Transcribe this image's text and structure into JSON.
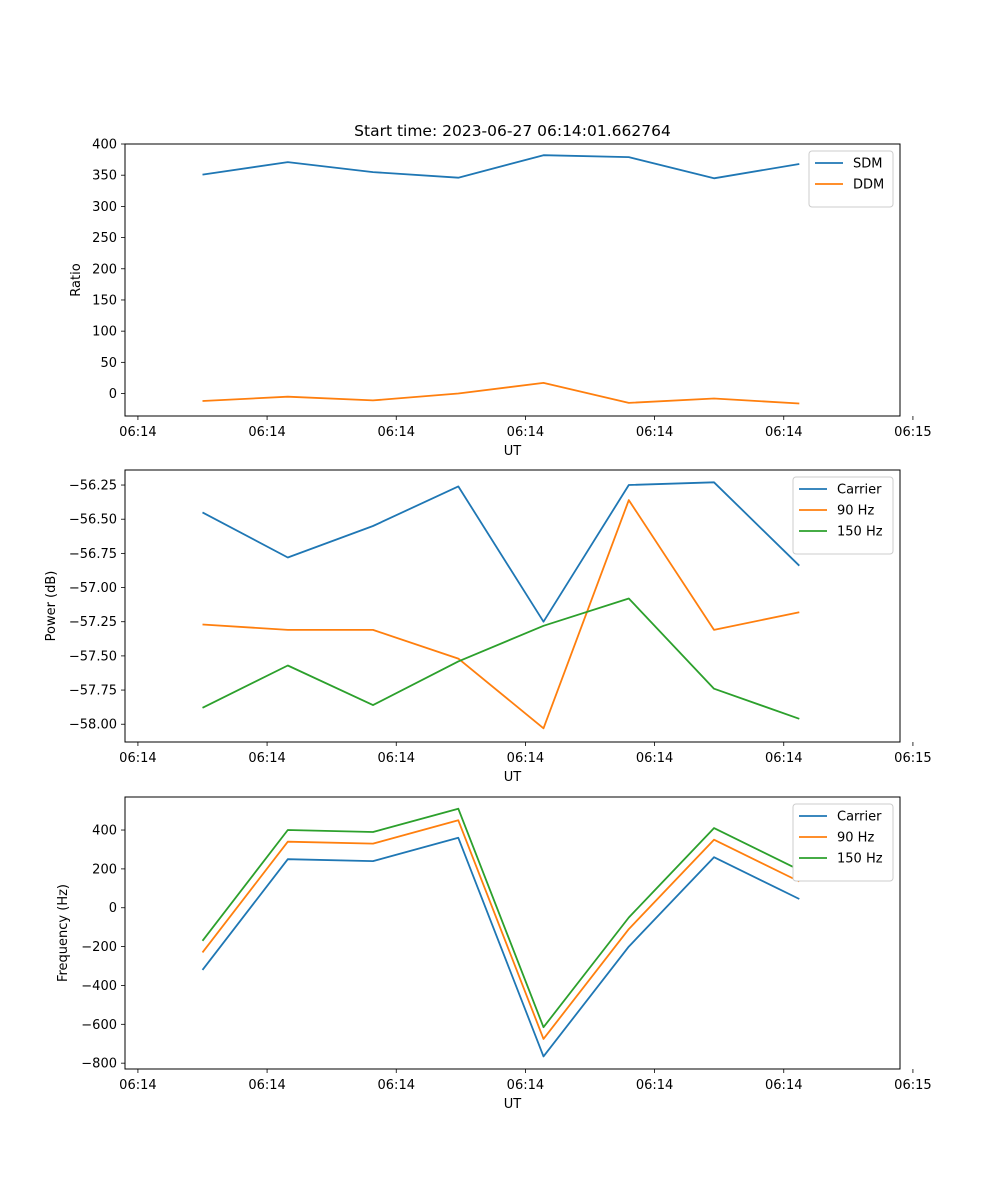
{
  "chart_data": [
    {
      "type": "line",
      "title": "Start time: 2023-06-27 06:14:01.662764",
      "xlabel": "UT",
      "ylabel": "Ratio",
      "x": [
        0.5,
        1.16,
        1.82,
        2.48,
        3.14,
        3.8,
        4.46,
        5.12
      ],
      "xlim": [
        -0.1,
        5.9
      ],
      "x_tick_labels": [
        "06:14",
        "06:14",
        "06:14",
        "06:14",
        "06:14",
        "06:14",
        "06:15"
      ],
      "ylim": [
        -36,
        400
      ],
      "y_ticks": [
        0,
        50,
        100,
        150,
        200,
        250,
        300,
        350,
        400
      ],
      "legend_position": "top-right",
      "series": [
        {
          "name": "SDM",
          "color": "#1f77b4",
          "values": [
            351,
            371,
            355,
            346,
            382,
            379,
            345,
            368
          ]
        },
        {
          "name": "DDM",
          "color": "#ff7f0e",
          "values": [
            -12,
            -5,
            -11,
            0,
            17,
            -15,
            -8,
            -16
          ]
        }
      ]
    },
    {
      "type": "line",
      "xlabel": "UT",
      "ylabel": "Power (dB)",
      "x": [
        0.5,
        1.16,
        1.82,
        2.48,
        3.14,
        3.8,
        4.46,
        5.12
      ],
      "xlim": [
        -0.1,
        5.9
      ],
      "x_tick_labels": [
        "06:14",
        "06:14",
        "06:14",
        "06:14",
        "06:14",
        "06:14",
        "06:15"
      ],
      "ylim": [
        -58.13,
        -56.14
      ],
      "y_ticks": [
        -58.0,
        -57.75,
        -57.5,
        -57.25,
        -57.0,
        -56.75,
        -56.5,
        -56.25
      ],
      "y_tick_labels": [
        "−58.00",
        "−57.75",
        "−57.50",
        "−57.25",
        "−57.00",
        "−56.75",
        "−56.50",
        "−56.25"
      ],
      "legend_position": "top-right",
      "series": [
        {
          "name": "Carrier",
          "color": "#1f77b4",
          "values": [
            -56.45,
            -56.78,
            -56.55,
            -56.26,
            -57.25,
            -56.25,
            -56.23,
            -56.84
          ]
        },
        {
          "name": "90 Hz",
          "color": "#ff7f0e",
          "values": [
            -57.27,
            -57.31,
            -57.31,
            -57.52,
            -58.03,
            -56.36,
            -57.31,
            -57.18
          ]
        },
        {
          "name": "150 Hz",
          "color": "#2ca02c",
          "values": [
            -57.88,
            -57.57,
            -57.86,
            -57.54,
            -57.28,
            -57.08,
            -57.74,
            -57.96
          ]
        }
      ]
    },
    {
      "type": "line",
      "xlabel": "UT",
      "ylabel": "Frequency (Hz)",
      "x": [
        0.5,
        1.16,
        1.82,
        2.48,
        3.14,
        3.8,
        4.46,
        5.12
      ],
      "xlim": [
        -0.1,
        5.9
      ],
      "x_tick_labels": [
        "06:14",
        "06:14",
        "06:14",
        "06:14",
        "06:14",
        "06:14",
        "06:15"
      ],
      "ylim": [
        -830,
        570
      ],
      "y_ticks": [
        -800,
        -600,
        -400,
        -200,
        0,
        200,
        400
      ],
      "y_tick_labels": [
        "−800",
        "−600",
        "−400",
        "−200",
        "0",
        "200",
        "400"
      ],
      "legend_position": "top-right",
      "series": [
        {
          "name": "Carrier",
          "color": "#1f77b4",
          "values": [
            -320,
            250,
            240,
            360,
            -765,
            -200,
            260,
            45
          ]
        },
        {
          "name": "90 Hz",
          "color": "#ff7f0e",
          "values": [
            -230,
            340,
            330,
            450,
            -675,
            -110,
            350,
            135
          ]
        },
        {
          "name": "150 Hz",
          "color": "#2ca02c",
          "values": [
            -170,
            400,
            390,
            510,
            -615,
            -50,
            410,
            195
          ]
        }
      ]
    }
  ]
}
